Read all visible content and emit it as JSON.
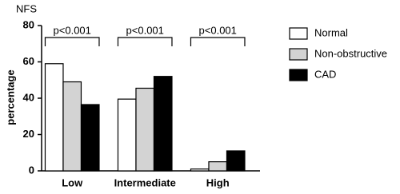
{
  "chart_data": {
    "type": "bar",
    "title": "NFS",
    "y_label": "percentage",
    "categories": [
      "Low",
      "Intermediate",
      "High"
    ],
    "series": [
      {
        "name": "Normal",
        "color": "#ffffff",
        "values": [
          59,
          39.5,
          1
        ]
      },
      {
        "name": "Non-obstructive",
        "color": "#d3d3d3",
        "values": [
          49,
          45.5,
          5
        ]
      },
      {
        "name": "CAD",
        "color": "#000000",
        "values": [
          36.5,
          52,
          11
        ]
      }
    ],
    "annotations": [
      "p<0.001",
      "p<0.001",
      "p<0.001"
    ],
    "ylim": [
      0,
      80
    ],
    "yticks": [
      0,
      20,
      40,
      60,
      80
    ],
    "grid": false,
    "legend": "right"
  }
}
